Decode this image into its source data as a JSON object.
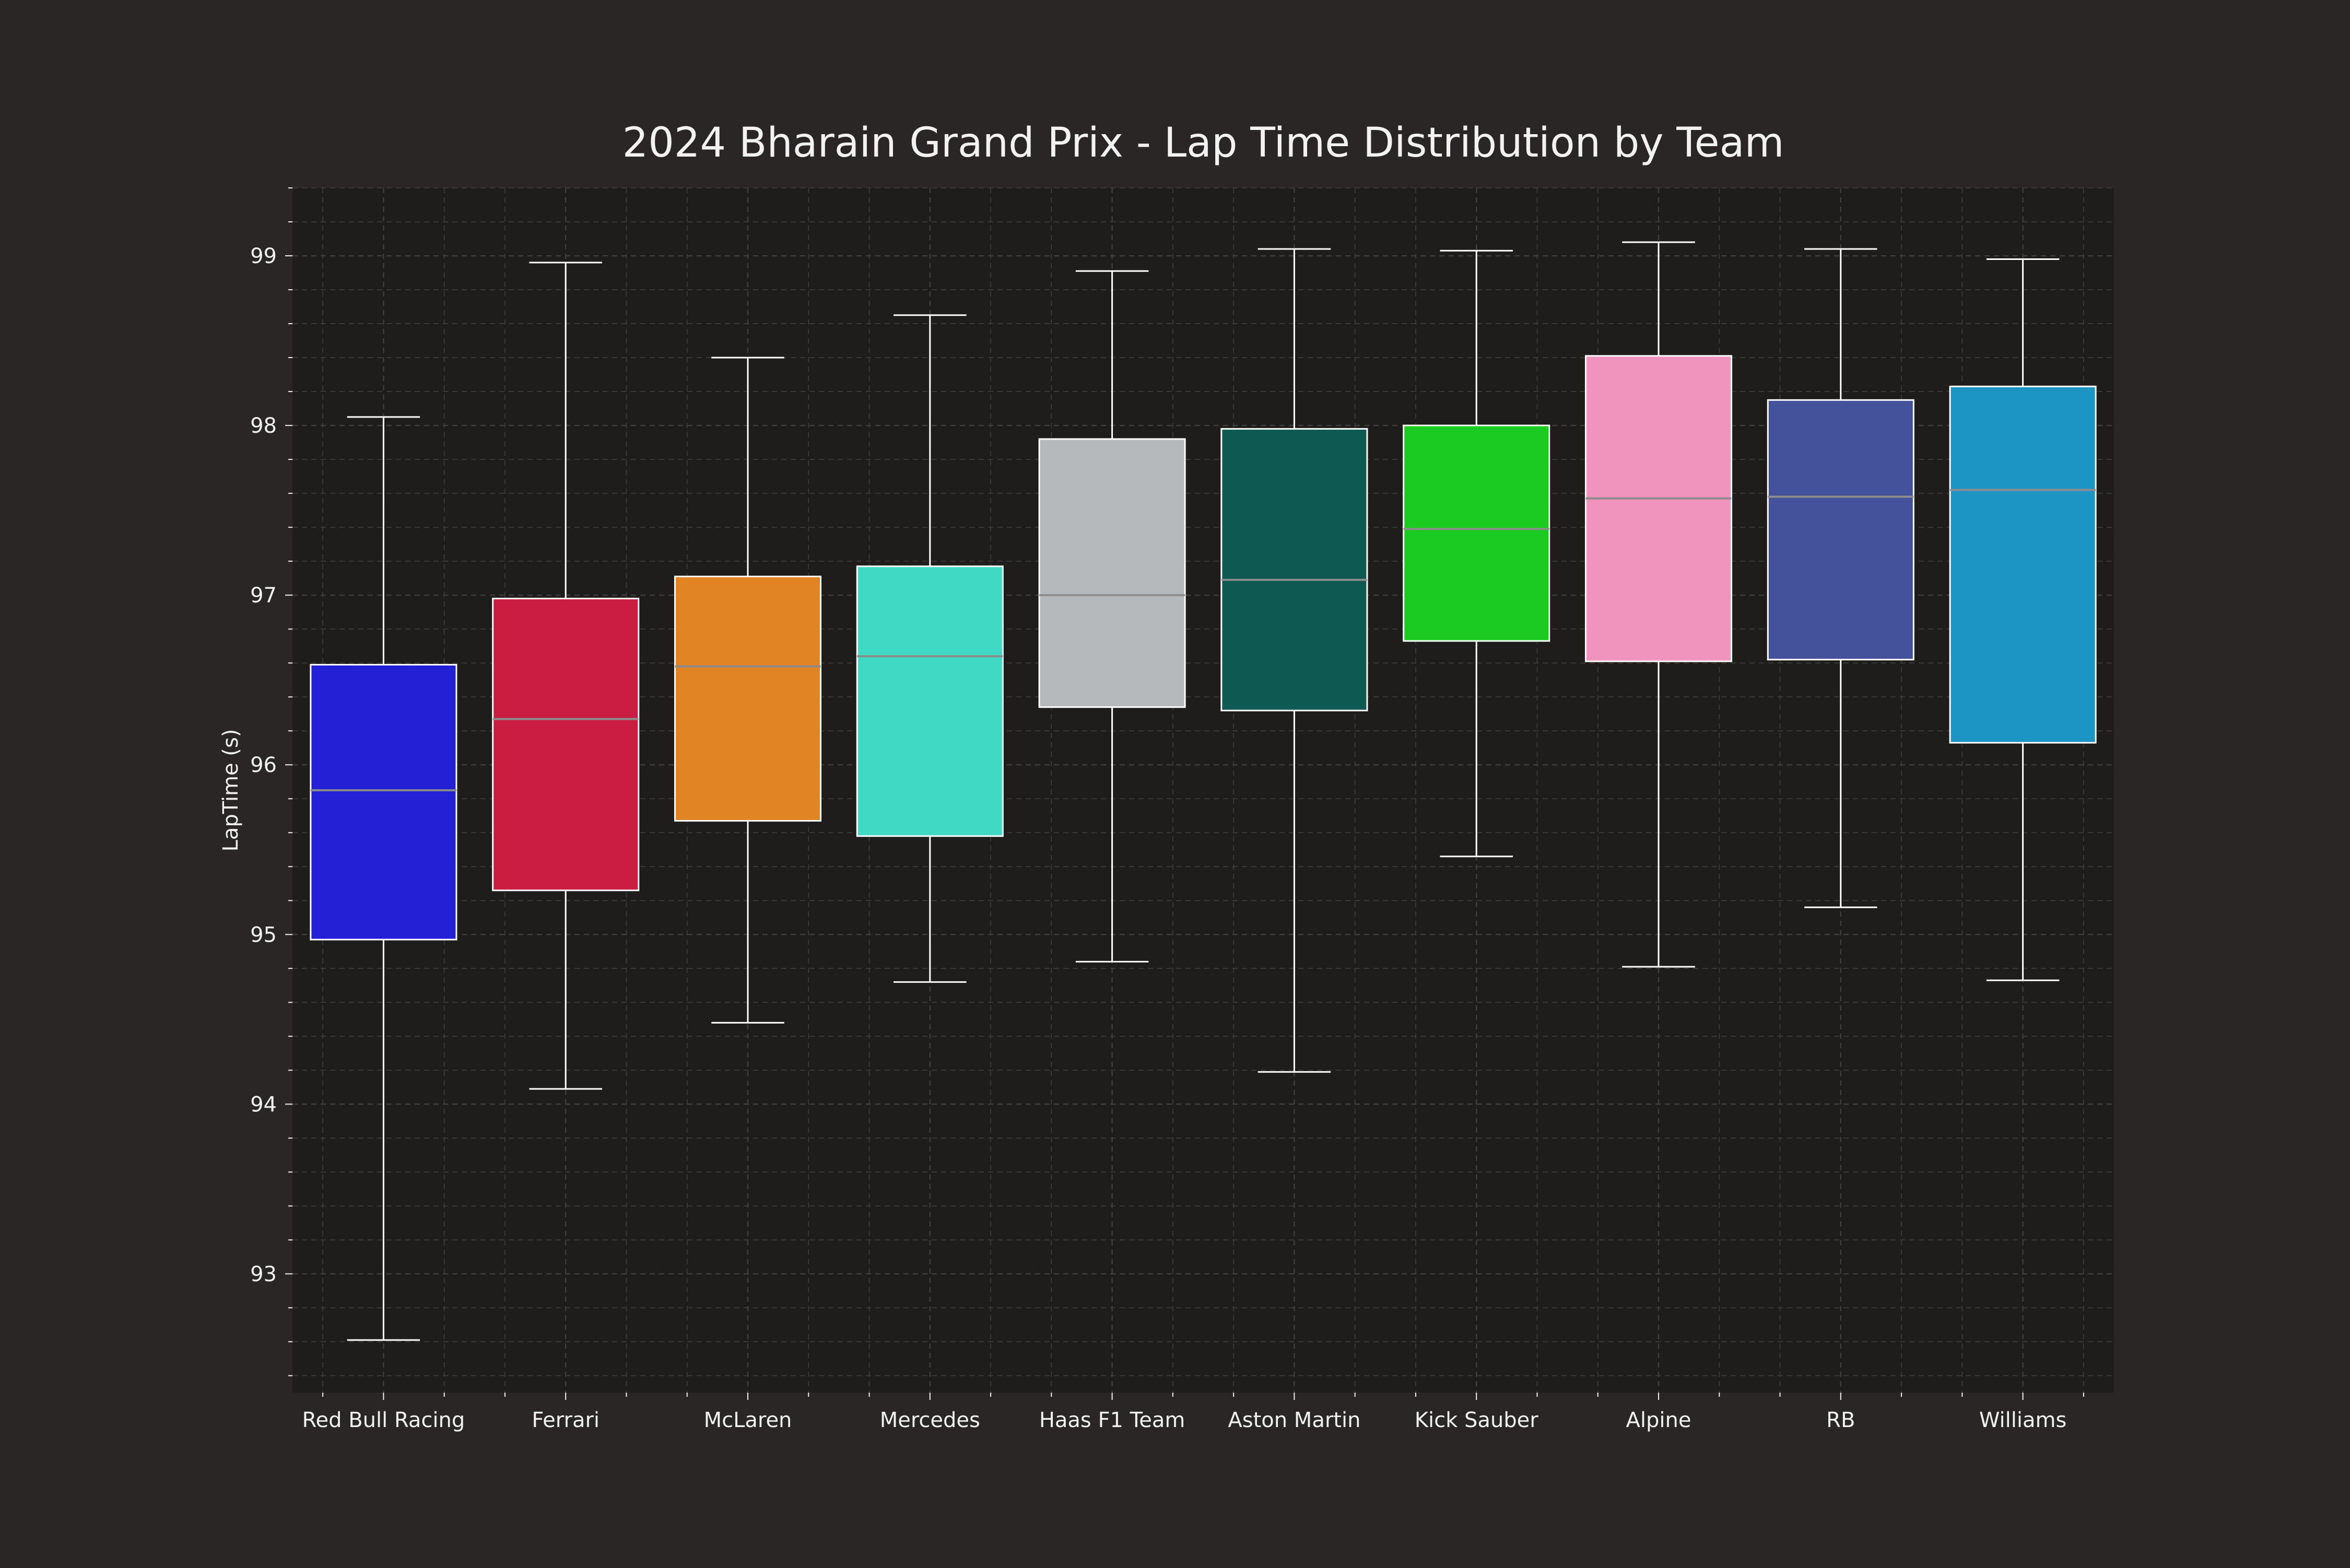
{
  "chart_data": {
    "type": "box",
    "title": "2024 Bharain Grand Prix - Lap Time Distribution by Team",
    "xlabel": "",
    "ylabel": "LapTime (s)",
    "ylim": [
      92.3,
      99.4
    ],
    "yticks": [
      93,
      94,
      95,
      96,
      97,
      98,
      99
    ],
    "grid": true,
    "categories": [
      "Red Bull Racing",
      "Ferrari",
      "McLaren",
      "Mercedes",
      "Haas F1 Team",
      "Aston Martin",
      "Kick Sauber",
      "Alpine",
      "RB",
      "Williams"
    ],
    "series": [
      {
        "category": "Red Bull Racing",
        "whisker_low": 92.61,
        "q1": 94.97,
        "median": 95.85,
        "q3": 96.59,
        "whisker_high": 98.05,
        "color": "#2320D6"
      },
      {
        "category": "Ferrari",
        "whisker_low": 94.09,
        "q1": 95.26,
        "median": 96.27,
        "q3": 96.98,
        "whisker_high": 98.96,
        "color": "#CB1D41"
      },
      {
        "category": "McLaren",
        "whisker_low": 94.48,
        "q1": 95.67,
        "median": 96.58,
        "q3": 97.11,
        "whisker_high": 98.4,
        "color": "#E08424"
      },
      {
        "category": "Mercedes",
        "whisker_low": 94.72,
        "q1": 95.58,
        "median": 96.64,
        "q3": 97.17,
        "whisker_high": 98.65,
        "color": "#40D9C4"
      },
      {
        "category": "Haas F1 Team",
        "whisker_low": 94.84,
        "q1": 96.34,
        "median": 97.0,
        "q3": 97.92,
        "whisker_high": 98.91,
        "color": "#B6B9BC"
      },
      {
        "category": "Aston Martin",
        "whisker_low": 94.19,
        "q1": 96.32,
        "median": 97.09,
        "q3": 97.98,
        "whisker_high": 99.04,
        "color": "#0E5A53"
      },
      {
        "category": "Kick Sauber",
        "whisker_low": 95.46,
        "q1": 96.73,
        "median": 97.39,
        "q3": 98.0,
        "whisker_high": 99.03,
        "color": "#1CCB21"
      },
      {
        "category": "Alpine",
        "whisker_low": 94.81,
        "q1": 96.61,
        "median": 97.57,
        "q3": 98.41,
        "whisker_high": 99.08,
        "color": "#F094BD"
      },
      {
        "category": "RB",
        "whisker_low": 95.16,
        "q1": 96.62,
        "median": 97.58,
        "q3": 98.15,
        "whisker_high": 99.04,
        "color": "#44529C"
      },
      {
        "category": "Williams",
        "whisker_low": 94.73,
        "q1": 96.13,
        "median": 97.62,
        "q3": 98.23,
        "whisker_high": 98.98,
        "color": "#1C94C4"
      }
    ]
  },
  "colors": {
    "background": "#292625",
    "plot_background": "#1E1D1C",
    "grid": "#3E3E3B",
    "text": "#F2F2F2",
    "median_line": "#8C8C8C",
    "box_edge": "#FFFFFF"
  }
}
